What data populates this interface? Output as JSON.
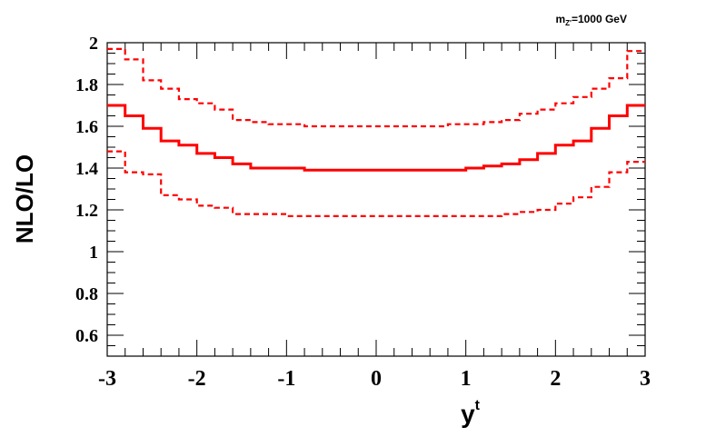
{
  "chart_data": {
    "type": "line",
    "annotation": {
      "main": "m",
      "sub": "Z'",
      "rest": "=1000 GeV"
    },
    "xlabel": {
      "main": "y",
      "sup": "t"
    },
    "ylabel": "NLO/LO",
    "xlim": [
      -3,
      3
    ],
    "ylim": [
      0.5,
      2.0
    ],
    "x_ticks": [
      -3,
      -2,
      -1,
      0,
      1,
      2,
      3
    ],
    "x_tick_labels": [
      "-3",
      "-2",
      "-1",
      "0",
      "1",
      "2",
      "3"
    ],
    "y_ticks": [
      0.6,
      0.8,
      1.0,
      1.2,
      1.4,
      1.6,
      1.8,
      2.0
    ],
    "y_tick_labels": [
      "0.6",
      "0.8",
      "1",
      "1.2",
      "1.4",
      "1.6",
      "1.8",
      "2"
    ],
    "bin_edges": [
      -3.0,
      -2.8,
      -2.6,
      -2.4,
      -2.2,
      -2.0,
      -1.8,
      -1.6,
      -1.4,
      -1.2,
      -1.0,
      -0.8,
      -0.6,
      -0.4,
      -0.2,
      0.0,
      0.2,
      0.4,
      0.6,
      0.8,
      1.0,
      1.2,
      1.4,
      1.6,
      1.8,
      2.0,
      2.2,
      2.4,
      2.6,
      2.8,
      3.0
    ],
    "grid": false,
    "colors": {
      "series": "#ff0000",
      "axis": "#000000"
    },
    "series": [
      {
        "style": "solid",
        "values": [
          1.7,
          1.65,
          1.59,
          1.53,
          1.51,
          1.47,
          1.45,
          1.42,
          1.4,
          1.4,
          1.4,
          1.39,
          1.39,
          1.39,
          1.39,
          1.39,
          1.39,
          1.39,
          1.39,
          1.39,
          1.4,
          1.41,
          1.42,
          1.44,
          1.47,
          1.51,
          1.53,
          1.59,
          1.65,
          1.7
        ]
      },
      {
        "style": "dashed",
        "values": [
          1.97,
          1.92,
          1.82,
          1.78,
          1.73,
          1.71,
          1.68,
          1.63,
          1.62,
          1.61,
          1.61,
          1.6,
          1.6,
          1.6,
          1.6,
          1.6,
          1.6,
          1.6,
          1.6,
          1.61,
          1.61,
          1.62,
          1.63,
          1.66,
          1.68,
          1.71,
          1.74,
          1.78,
          1.83,
          1.96
        ]
      },
      {
        "style": "dashed",
        "values": [
          1.48,
          1.38,
          1.37,
          1.27,
          1.25,
          1.22,
          1.21,
          1.18,
          1.18,
          1.18,
          1.17,
          1.17,
          1.17,
          1.17,
          1.17,
          1.17,
          1.17,
          1.17,
          1.17,
          1.17,
          1.17,
          1.17,
          1.18,
          1.19,
          1.2,
          1.23,
          1.26,
          1.31,
          1.38,
          1.43
        ]
      }
    ]
  }
}
